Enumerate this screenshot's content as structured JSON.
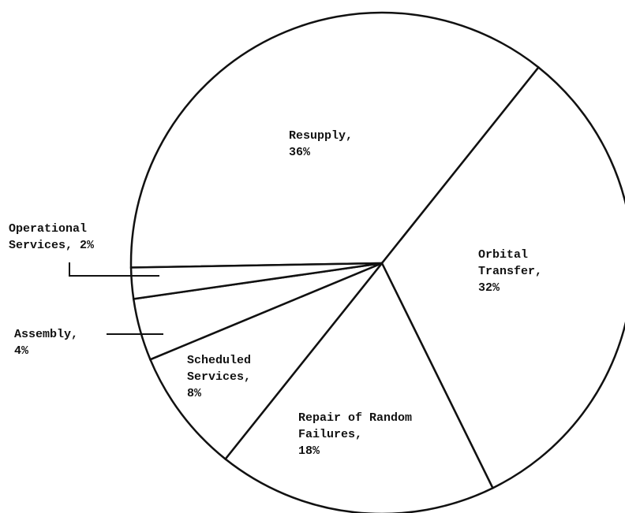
{
  "chart_data": {
    "type": "pie",
    "categories": [
      "Resupply,",
      "Orbital Transfer,",
      "Repair of Random Failures,",
      "Scheduled Services,",
      "Assembly,",
      "Operational Services,"
    ],
    "values": [
      36,
      32,
      18,
      8,
      4,
      2
    ],
    "value_labels": [
      "36%",
      "32%",
      "18%",
      "8%",
      "4%",
      "2%"
    ],
    "color": "#ffffff"
  }
}
